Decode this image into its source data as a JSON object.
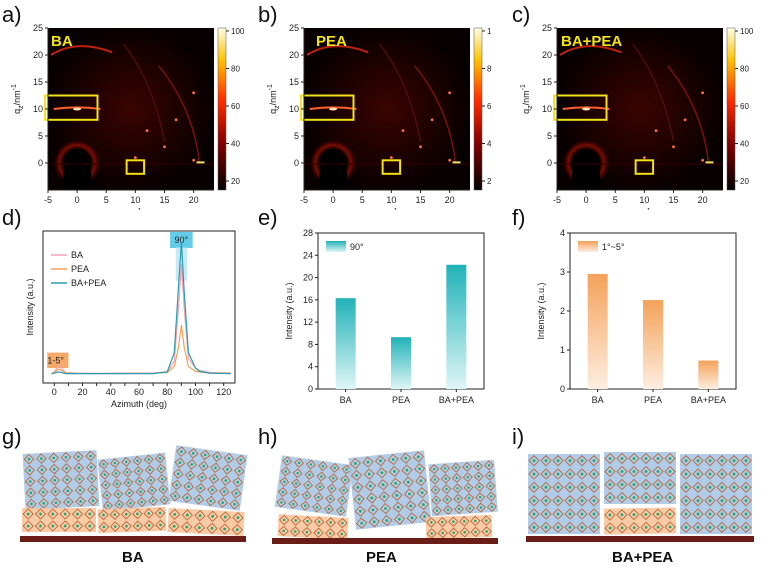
{
  "panel_labels": [
    "a)",
    "b)",
    "c)",
    "d)",
    "e)",
    "f)",
    "g)",
    "h)",
    "i)"
  ],
  "giwaxs": [
    {
      "name": "BA",
      "cbar_ticks": [
        "100",
        "80",
        "60",
        "40",
        "20"
      ]
    },
    {
      "name": "PEA",
      "cbar_ticks": [
        "1",
        "8",
        "6",
        "4",
        "2"
      ]
    },
    {
      "name": "BA+PEA",
      "cbar_ticks": [
        "100",
        "80",
        "60",
        "40",
        "20"
      ]
    }
  ],
  "giwaxs_axes": {
    "ylabel": "q_z/nm^-1",
    "ylabel_base": "q",
    "ylabel_sub": "z",
    "ylabel_unit": "/nm",
    "ylabel_sup": "-1",
    "xlabel_base": "q",
    "xlabel_sub": "xy",
    "xlabel_unit": "/nm",
    "xlabel_sup": "-1",
    "yticks": [
      "25",
      "20",
      "15",
      "10",
      "5",
      "0"
    ],
    "xticks": [
      "-5",
      "0",
      "5",
      "10",
      "15",
      "20"
    ]
  },
  "chart_data": [
    {
      "type": "line",
      "panel": "d)",
      "title": "",
      "xlabel": "Azimuth (deg)",
      "ylabel": "Intensity (a.u.)",
      "xlim": [
        -8,
        128
      ],
      "xticks": [
        "0",
        "10",
        "20",
        "30",
        "40",
        "50",
        "60",
        "70",
        "80",
        "90",
        "100",
        "110",
        "120"
      ],
      "legend": [
        "BA",
        "PEA",
        "BA+PEA"
      ],
      "annotations": [
        "90°",
        "1-5°"
      ],
      "series": [
        {
          "name": "BA",
          "color": "#f2a4b4",
          "x": [
            -2,
            0,
            3,
            5,
            8,
            15,
            30,
            50,
            70,
            80,
            85,
            88,
            90,
            92,
            95,
            100,
            103,
            110,
            125
          ],
          "y": [
            0.2,
            0.5,
            1.6,
            1.2,
            0.4,
            0.3,
            0.25,
            0.3,
            0.3,
            0.5,
            2.5,
            12,
            20,
            12,
            3,
            1.2,
            0.8,
            0.4,
            0.3
          ]
        },
        {
          "name": "PEA",
          "color": "#f5a15a",
          "x": [
            -2,
            0,
            3,
            5,
            8,
            15,
            30,
            50,
            70,
            80,
            85,
            88,
            90,
            92,
            95,
            100,
            103,
            110,
            125
          ],
          "y": [
            0.2,
            0.4,
            1.0,
            0.8,
            0.3,
            0.25,
            0.2,
            0.25,
            0.25,
            0.4,
            1.5,
            5,
            9,
            5,
            1.5,
            0.6,
            0.5,
            0.3,
            0.3
          ]
        },
        {
          "name": "BA+PEA",
          "color": "#2a9db5",
          "x": [
            -2,
            0,
            3,
            5,
            8,
            15,
            30,
            50,
            70,
            80,
            85,
            88,
            90,
            92,
            95,
            100,
            103,
            110,
            125
          ],
          "y": [
            0.15,
            0.3,
            0.5,
            0.4,
            0.2,
            0.2,
            0.2,
            0.2,
            0.2,
            0.5,
            4,
            16,
            24,
            15,
            4,
            1.2,
            0.6,
            0.3,
            0.2
          ]
        }
      ]
    },
    {
      "type": "bar",
      "panel": "e)",
      "title": "",
      "xlabel": "",
      "ylabel": "Intensity (a.u.)",
      "ylim": [
        0,
        28
      ],
      "yticks": [
        "0",
        "4",
        "8",
        "12",
        "16",
        "20",
        "24",
        "28"
      ],
      "legend": [
        "90°"
      ],
      "categories": [
        "BA",
        "PEA",
        "BA+PEA"
      ],
      "values": [
        16.3,
        9.3,
        22.3
      ]
    },
    {
      "type": "bar",
      "panel": "f)",
      "title": "",
      "xlabel": "",
      "ylabel": "Intensity (a.u.)",
      "ylim": [
        0,
        4
      ],
      "yticks": [
        "0",
        "1",
        "2",
        "3",
        "4"
      ],
      "legend": [
        "1°~5°"
      ],
      "categories": [
        "BA",
        "PEA",
        "BA+PEA"
      ],
      "values": [
        2.95,
        2.28,
        0.73
      ]
    }
  ],
  "schematics": [
    {
      "name": "BA"
    },
    {
      "name": "PEA"
    },
    {
      "name": "BA+PEA"
    }
  ],
  "colors": {
    "teal": "#2cbcc7",
    "orange": "#f5a15a",
    "pink": "#f2a4b4",
    "blue_block": "#a9c6e6",
    "orange_block": "#f8c49c",
    "substrate": "#6a1d16",
    "yellow_box": "#f2e21a"
  }
}
